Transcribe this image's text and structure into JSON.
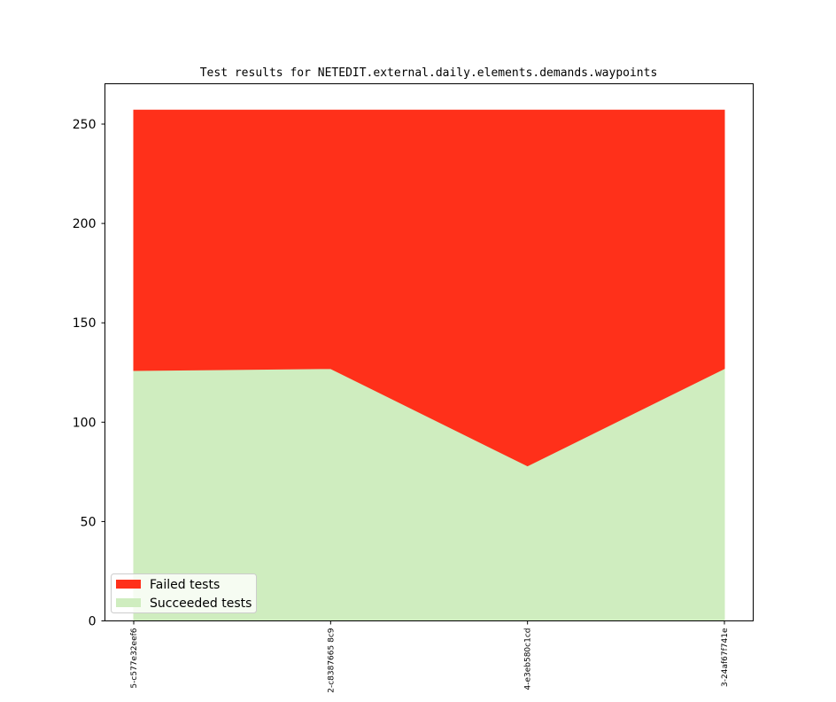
{
  "chart_data": {
    "type": "area",
    "title": "Test results for NETEDIT.external.daily.elements.demands.waypoints",
    "xlabel": "",
    "ylabel": "",
    "categories": [
      "5-c577e32eef6",
      "2-c8387665 8c9",
      "4-e3eb580c1cd",
      "3-24af67f741e"
    ],
    "series": [
      {
        "name": "Succeeded tests",
        "color": "#cfedbf",
        "values": [
          126,
          127,
          78,
          127
        ]
      },
      {
        "name": "Failed tests",
        "color": "#ff301a",
        "values": [
          131,
          130,
          179,
          130
        ]
      }
    ],
    "totals": [
      257,
      257,
      257,
      257
    ],
    "stacked": true,
    "ylim": [
      0,
      270
    ],
    "yticks": [
      0,
      50,
      100,
      150,
      200,
      250
    ],
    "grid": false,
    "legend_position": "lower-left"
  }
}
